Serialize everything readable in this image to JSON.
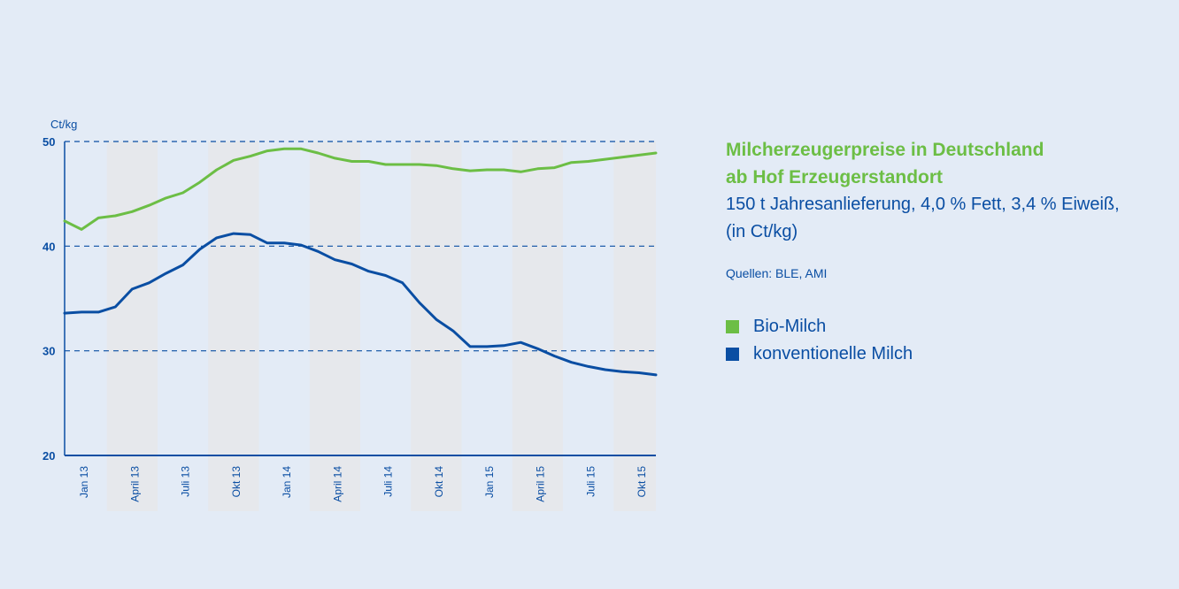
{
  "colors": {
    "bio": "#6cbe45",
    "konv": "#0a4ea3",
    "band": "#e6e8ec",
    "background": "#e3ebf6"
  },
  "info": {
    "title_line1": "Milcherzeugerpreise in Deutschland",
    "title_line2": "ab Hof Erzeugerstandort",
    "subtitle_line1": "150 t Jahresanlieferung, 4,0 % Fett, 3,4 % Eiweiß,",
    "subtitle_line2": "(in Ct/kg)",
    "source": "Quellen: BLE, AMI"
  },
  "chart_data": {
    "type": "line",
    "ylabel": "Ct/kg",
    "ylim": [
      20,
      50
    ],
    "yticks": [
      20,
      30,
      40,
      50
    ],
    "x": [
      "Jan 13",
      "Feb 13",
      "Mär 13",
      "Apr 13",
      "Mai 13",
      "Jun 13",
      "Jul 13",
      "Aug 13",
      "Sep 13",
      "Okt 13",
      "Nov 13",
      "Dez 13",
      "Jan 14",
      "Feb 14",
      "Mär 14",
      "Apr 14",
      "Mai 14",
      "Jun 14",
      "Jul 14",
      "Aug 14",
      "Sep 14",
      "Okt 14",
      "Nov 14",
      "Dez 14",
      "Jan 15",
      "Feb 15",
      "Mär 15",
      "Apr 15",
      "Mai 15",
      "Jun 15",
      "Jul 15",
      "Aug 15",
      "Sep 15",
      "Okt 15",
      "Nov 15",
      "Dez 15"
    ],
    "xticklabels": [
      "Jan 13",
      "April 13",
      "Juli 13",
      "Okt 13",
      "Jan 14",
      "April 14",
      "Juli 14",
      "Okt 14",
      "Jan 15",
      "April 15",
      "Juli 15",
      "Okt 15"
    ],
    "series": [
      {
        "name": "Bio-Milch",
        "color": "#6cbe45",
        "values": [
          42.4,
          41.6,
          42.7,
          42.9,
          43.3,
          43.9,
          44.6,
          45.1,
          46.1,
          47.3,
          48.2,
          48.6,
          49.1,
          49.3,
          49.3,
          48.9,
          48.4,
          48.1,
          48.1,
          47.8,
          47.8,
          47.8,
          47.7,
          47.4,
          47.2,
          47.3,
          47.3,
          47.1,
          47.4,
          47.5,
          48.0,
          48.1,
          48.3,
          48.5,
          48.7,
          48.9
        ]
      },
      {
        "name": "konventionelle Milch",
        "color": "#0a4ea3",
        "values": [
          33.6,
          33.7,
          33.7,
          34.2,
          35.9,
          36.5,
          37.4,
          38.2,
          39.7,
          40.8,
          41.2,
          41.1,
          40.3,
          40.3,
          40.1,
          39.5,
          38.7,
          38.3,
          37.6,
          37.2,
          36.5,
          34.6,
          33.0,
          31.9,
          30.4,
          30.4,
          30.5,
          30.8,
          30.2,
          29.5,
          28.9,
          28.5,
          28.2,
          28.0,
          27.9,
          27.7
        ]
      }
    ],
    "legend": "right",
    "grid": true
  }
}
